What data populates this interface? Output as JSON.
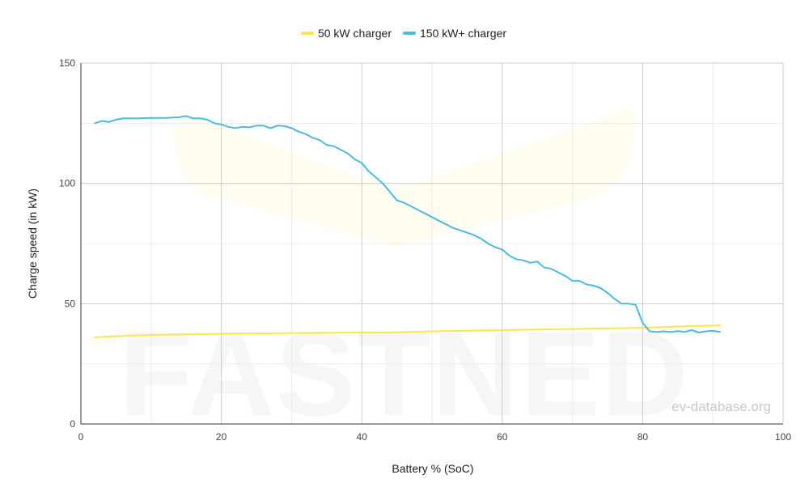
{
  "chart_data": {
    "type": "line",
    "xlabel": "Battery % (SoC)",
    "ylabel": "Charge speed (in kW)",
    "xlim": [
      0,
      100
    ],
    "ylim": [
      0,
      150
    ],
    "x_ticks": [
      0,
      20,
      40,
      60,
      80,
      100
    ],
    "y_ticks": [
      0,
      50,
      100,
      150
    ],
    "grid": true,
    "legend_position": "top-center",
    "series": [
      {
        "name": "50 kW charger",
        "color": "#fbe54a",
        "x": [
          2,
          5,
          10,
          20,
          30,
          40,
          45,
          50,
          60,
          70,
          80,
          85,
          91
        ],
        "y": [
          36,
          36.5,
          37,
          37.5,
          37.8,
          38,
          38.1,
          38.5,
          39,
          39.5,
          40,
          40.5,
          41
        ]
      },
      {
        "name": "150 kW+ charger",
        "color": "#4bbbdb",
        "x": [
          2,
          3,
          4,
          5,
          6,
          8,
          10,
          12,
          14,
          15,
          16,
          17,
          18,
          19,
          20,
          21,
          22,
          23,
          24,
          25,
          26,
          27,
          28,
          29,
          30,
          31,
          32,
          33,
          34,
          35,
          36,
          37,
          38,
          39,
          40,
          41,
          42,
          43,
          44,
          45,
          46,
          47,
          48,
          49,
          50,
          51,
          52,
          53,
          54,
          55,
          56,
          57,
          58,
          59,
          60,
          61,
          62,
          63,
          64,
          65,
          66,
          67,
          68,
          69,
          70,
          71,
          72,
          73,
          74,
          75,
          76,
          77,
          78,
          79,
          80,
          81,
          82,
          83,
          84,
          85,
          86,
          87,
          88,
          89,
          90,
          91
        ],
        "y": [
          125,
          126,
          125.5,
          126.5,
          127,
          127,
          127.2,
          127.2,
          127.5,
          128,
          127,
          127,
          126.5,
          125,
          124.5,
          123.5,
          123,
          123.5,
          123.3,
          124,
          124,
          123,
          124,
          123.8,
          123,
          121.5,
          120.5,
          119,
          118,
          116,
          115.5,
          114,
          112.5,
          110,
          108.5,
          105,
          102.5,
          100,
          96.5,
          93,
          92,
          90.5,
          89,
          87.5,
          86,
          84.5,
          83,
          81.5,
          80.5,
          79.5,
          78.5,
          77,
          75,
          73.5,
          72.5,
          70,
          68.5,
          68,
          67,
          67.5,
          65,
          64.5,
          63,
          61.5,
          59.5,
          59.5,
          58,
          57.5,
          56.5,
          54.5,
          52,
          50,
          50,
          49.5,
          42,
          38.5,
          38.2,
          38.5,
          38.2,
          38.6,
          38.3,
          39,
          38,
          38.5,
          38.7,
          38.3
        ]
      }
    ]
  },
  "watermark": {
    "brand": "FASTNED",
    "credit": "ev-database.org"
  }
}
